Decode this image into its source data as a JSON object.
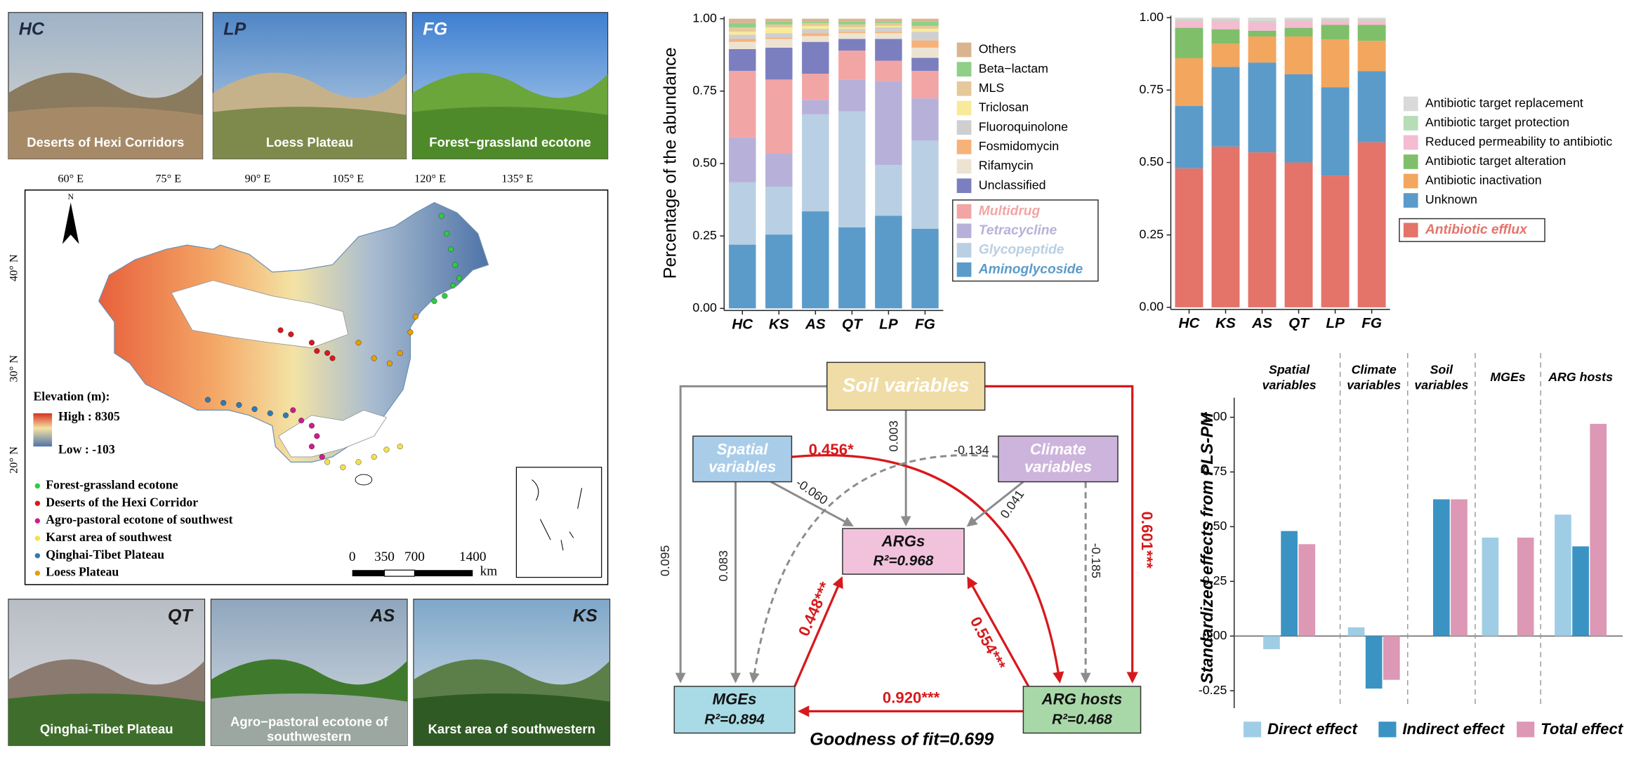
{
  "photos": [
    {
      "code": "HC",
      "caption": "Deserts of Hexi Corridors"
    },
    {
      "code": "LP",
      "caption": "Loess Plateau"
    },
    {
      "code": "FG",
      "caption": "Forest−grassland ecotone"
    },
    {
      "code": "QT",
      "caption": "Qinghai-Tibet Plateau"
    },
    {
      "code": "AS",
      "caption": "Agro−pastoral ecotone of southwestern"
    },
    {
      "code": "KS",
      "caption": "Karst area of southwestern"
    }
  ],
  "map": {
    "lon_labels": [
      "60° E",
      "75° E",
      "90° E",
      "105° E",
      "120° E",
      "135° E"
    ],
    "lat_labels": [
      "40° N",
      "30° N",
      "20° N"
    ],
    "north": "N",
    "elevation_title": "Elevation (m):",
    "elevation_high": "High : 8305",
    "elevation_low": "Low : -103",
    "legend": [
      {
        "label": "Forest-grassland ecotone",
        "color": "#2ecc40"
      },
      {
        "label": "Deserts of the Hexi Corridor",
        "color": "#d7191c"
      },
      {
        "label": "Agro-pastoral ecotone of southwest",
        "color": "#d01c8b"
      },
      {
        "label": "Karst area of southwest",
        "color": "#f4e04d"
      },
      {
        "label": "Qinghai-Tibet Plateau",
        "color": "#2c7bb6"
      },
      {
        "label": "Loess Plateau",
        "color": "#e69f00"
      }
    ],
    "scale_labels": [
      "0",
      "350",
      "700",
      "1400"
    ],
    "scale_unit": "km"
  },
  "chart_data": [
    {
      "type": "stacked_bar",
      "y_label": "Percentage of the abundance",
      "categories": [
        "HC",
        "KS",
        "AS",
        "QT",
        "LP",
        "FG"
      ],
      "ylim": [
        0,
        1
      ],
      "yticks": [
        {
          "value": 0,
          "label": "0.00"
        },
        0.25,
        {
          "value": 0.5,
          "label": "0.50"
        },
        0.75,
        {
          "value": 1,
          "label": "1.00"
        }
      ],
      "series": [
        {
          "name": "Aminoglycoside",
          "color": "#5b9bc9",
          "emphasis": true,
          "values": [
            0.22,
            0.255,
            0.335,
            0.28,
            0.32,
            0.275
          ]
        },
        {
          "name": "Glycopeptide",
          "color": "#b9cfe3",
          "emphasis": true,
          "values": [
            0.215,
            0.165,
            0.335,
            0.4,
            0.175,
            0.305
          ]
        },
        {
          "name": "Tetracycline",
          "color": "#b7b1d9",
          "emphasis": true,
          "values": [
            0.155,
            0.115,
            0.05,
            0.11,
            0.29,
            0.145
          ]
        },
        {
          "name": "Multidrug",
          "color": "#f2a5a5",
          "emphasis": true,
          "values": [
            0.23,
            0.255,
            0.09,
            0.1,
            0.07,
            0.095
          ]
        },
        {
          "name": "Unclassified",
          "color": "#7b7fbf",
          "values": [
            0.075,
            0.11,
            0.11,
            0.04,
            0.075,
            0.045
          ]
        },
        {
          "name": "Rifamycin",
          "color": "#ede3d3",
          "values": [
            0.025,
            0.03,
            0.02,
            0.02,
            0.02,
            0.035
          ]
        },
        {
          "name": "Fosmidomycin",
          "color": "#f7b27a",
          "values": [
            0.01,
            0.005,
            0.01,
            0.005,
            0.005,
            0.025
          ]
        },
        {
          "name": "Fluoroquinolone",
          "color": "#cfcfcf",
          "values": [
            0.015,
            0.015,
            0.015,
            0.01,
            0.015,
            0.03
          ]
        },
        {
          "name": "Triclosan",
          "color": "#f8ea9a",
          "values": [
            0.01,
            0.02,
            0.01,
            0.005,
            0.005,
            0.01
          ]
        },
        {
          "name": "MLS",
          "color": "#e6c99a",
          "values": [
            0.015,
            0.01,
            0.01,
            0.01,
            0.01,
            0.01
          ]
        },
        {
          "name": "Beta−lactam",
          "color": "#8fcf87",
          "values": [
            0.015,
            0.01,
            0.005,
            0.01,
            0.005,
            0.015
          ]
        },
        {
          "name": "Others",
          "color": "#d9b48f",
          "values": [
            0.015,
            0.01,
            0.01,
            0.01,
            0.01,
            0.01
          ]
        }
      ]
    },
    {
      "type": "stacked_bar",
      "categories": [
        "HC",
        "KS",
        "AS",
        "QT",
        "LP",
        "FG"
      ],
      "ylim": [
        0,
        1
      ],
      "yticks": [
        {
          "value": 0,
          "label": "0.00"
        },
        0.25,
        {
          "value": 0.5,
          "label": "0.50"
        },
        0.75,
        {
          "value": 1,
          "label": "1.00"
        }
      ],
      "series": [
        {
          "name": "Antibiotic efflux",
          "color": "#e4736a",
          "emphasis": true,
          "values": [
            0.48,
            0.555,
            0.535,
            0.5,
            0.455,
            0.57
          ]
        },
        {
          "name": "Unknown",
          "color": "#5b9bc9",
          "values": [
            0.215,
            0.275,
            0.31,
            0.305,
            0.305,
            0.245
          ]
        },
        {
          "name": "Antibiotic inactivation",
          "color": "#f2a65e",
          "values": [
            0.165,
            0.08,
            0.09,
            0.13,
            0.165,
            0.105
          ]
        },
        {
          "name": "Antibiotic target alteration",
          "color": "#7fbf6a",
          "values": [
            0.105,
            0.05,
            0.02,
            0.03,
            0.05,
            0.055
          ]
        },
        {
          "name": "Reduced permeability to antibiotic",
          "color": "#f3bcd0",
          "values": [
            0.025,
            0.03,
            0.03,
            0.025,
            0.015,
            0.015
          ]
        },
        {
          "name": "Antibiotic target protection",
          "color": "#b7dcb8",
          "values": [
            0.005,
            0.005,
            0.005,
            0.005,
            0.005,
            0.005
          ]
        },
        {
          "name": "Antibiotic target replacement",
          "color": "#d9d9d9",
          "values": [
            0.005,
            0.005,
            0.01,
            0.005,
            0.005,
            0.005
          ]
        }
      ]
    },
    {
      "type": "grouped_bar",
      "y_label": "Standardized effects from PLS-PM",
      "categories": [
        "Spatial variables",
        "Climate variables",
        "Soil variables",
        "MGEs",
        "ARG hosts"
      ],
      "separators": "dashed",
      "ylim": [
        -0.32,
        1.08
      ],
      "yticks": [
        -0.25,
        {
          "value": 0,
          "label": "0.00"
        },
        0.25,
        {
          "value": 0.5,
          "label": "0.50"
        },
        0.75,
        {
          "value": 1,
          "label": "1.00"
        }
      ],
      "series": [
        {
          "name": "Direct effect",
          "color": "#9fcde6",
          "values": [
            -0.06,
            0.04,
            null,
            0.45,
            0.555
          ]
        },
        {
          "name": "Indirect effect",
          "color": "#3a93c3",
          "values": [
            0.48,
            -0.24,
            0.625,
            null,
            0.41
          ]
        },
        {
          "name": "Total effect",
          "color": "#dc98b5",
          "values": [
            0.42,
            -0.2,
            0.625,
            0.45,
            0.97
          ]
        }
      ]
    }
  ],
  "path_diagram": {
    "nodes": [
      {
        "label": "Soil variables"
      },
      {
        "label": "Spatial variables"
      },
      {
        "label": "Climate variables"
      },
      {
        "label": "ARGs",
        "r2": "R²=0.968"
      },
      {
        "label": "MGEs",
        "r2": "R²=0.894"
      },
      {
        "label": "ARG hosts",
        "r2": "R²=0.468"
      }
    ],
    "edges": [
      {
        "label": "0.601***",
        "color": "#d7191c"
      },
      {
        "label": "0.003",
        "color": "#8c8c8c"
      },
      {
        "label": "0.095",
        "color": "#8c8c8c"
      },
      {
        "label": "0.083",
        "color": "#8c8c8c"
      },
      {
        "label": "-0.060",
        "color": "#8c8c8c"
      },
      {
        "label": "0.456*",
        "color": "#d7191c"
      },
      {
        "label": "-0.134",
        "color": "#8c8c8c",
        "dashed": true
      },
      {
        "label": "0.041",
        "color": "#8c8c8c"
      },
      {
        "label": "-0.185",
        "color": "#8c8c8c",
        "dashed": true
      },
      {
        "label": "0.448***",
        "color": "#d7191c"
      },
      {
        "label": "0.554***",
        "color": "#d7191c"
      },
      {
        "label": "0.920***",
        "color": "#d7191c"
      }
    ],
    "goodness_of_fit": "Goodness of fit=0.699"
  }
}
